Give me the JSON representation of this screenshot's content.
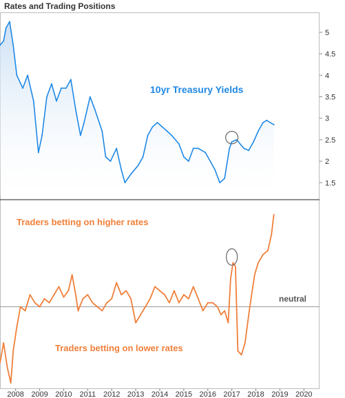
{
  "chart_data": [
    {
      "type": "area",
      "title": "Rates and Trading Positions",
      "annotation": "10yr Treasury Yields",
      "color": "#1e88e5",
      "ylim": [
        1.2,
        5.4
      ],
      "yticks": [
        1.5,
        2,
        2.5,
        3,
        3.5,
        4,
        4.5,
        5
      ],
      "ytick_labels": [
        "1.5",
        "2",
        "2.5",
        "3",
        "3.5",
        "4",
        "4.5",
        "5"
      ],
      "x": [
        2007.35,
        2007.5,
        2007.6,
        2007.75,
        2007.9,
        2008.05,
        2008.3,
        2008.5,
        2008.75,
        2008.95,
        2009.1,
        2009.3,
        2009.5,
        2009.7,
        2009.9,
        2010.1,
        2010.3,
        2010.5,
        2010.7,
        2010.85,
        2011.1,
        2011.3,
        2011.6,
        2011.75,
        2011.95,
        2012.2,
        2012.4,
        2012.55,
        2012.8,
        2013.1,
        2013.3,
        2013.5,
        2013.7,
        2013.9,
        2014.1,
        2014.3,
        2014.5,
        2014.8,
        2015.0,
        2015.2,
        2015.4,
        2015.6,
        2015.9,
        2016.1,
        2016.3,
        2016.5,
        2016.7,
        2016.9,
        2017.0,
        2017.2,
        2017.5,
        2017.7,
        2017.9,
        2018.1,
        2018.3,
        2018.45,
        2018.6,
        2018.75
      ],
      "values": [
        4.7,
        4.8,
        5.1,
        5.25,
        4.7,
        4.0,
        3.7,
        4.0,
        3.4,
        2.2,
        2.6,
        3.5,
        3.8,
        3.4,
        3.7,
        3.7,
        3.9,
        3.2,
        2.6,
        2.9,
        3.5,
        3.2,
        2.7,
        2.1,
        2.0,
        2.3,
        1.8,
        1.5,
        1.7,
        1.9,
        2.1,
        2.6,
        2.8,
        2.9,
        2.8,
        2.7,
        2.6,
        2.4,
        2.1,
        2.0,
        2.3,
        2.3,
        2.2,
        2.0,
        1.8,
        1.5,
        1.6,
        2.3,
        2.45,
        2.5,
        2.3,
        2.25,
        2.45,
        2.7,
        2.9,
        2.95,
        2.9,
        2.85
      ]
    },
    {
      "type": "line",
      "annotations": [
        "Traders betting on higher rates",
        "Traders betting on lower rates"
      ],
      "reference_line": {
        "value": 0,
        "label": "neutral"
      },
      "color": "#f07f3a",
      "ylim": [
        -1.0,
        1.3
      ],
      "x": [
        2007.35,
        2007.5,
        2007.65,
        2007.8,
        2007.9,
        2008.05,
        2008.2,
        2008.4,
        2008.6,
        2008.8,
        2009.0,
        2009.2,
        2009.4,
        2009.6,
        2009.8,
        2010.0,
        2010.2,
        2010.35,
        2010.5,
        2010.6,
        2010.8,
        2011.0,
        2011.2,
        2011.4,
        2011.6,
        2011.8,
        2012.0,
        2012.2,
        2012.4,
        2012.6,
        2012.8,
        2013.0,
        2013.2,
        2013.4,
        2013.6,
        2013.8,
        2014.0,
        2014.2,
        2014.4,
        2014.6,
        2014.8,
        2015.0,
        2015.2,
        2015.4,
        2015.6,
        2015.8,
        2016.0,
        2016.2,
        2016.4,
        2016.55,
        2016.7,
        2016.85,
        2016.95,
        2017.05,
        2017.15,
        2017.25,
        2017.4,
        2017.55,
        2017.75,
        2017.95,
        2018.1,
        2018.3,
        2018.5,
        2018.65,
        2018.75
      ],
      "values": [
        -0.7,
        -0.45,
        -0.75,
        -0.95,
        -0.55,
        -0.25,
        0.0,
        -0.05,
        0.15,
        0.05,
        0.0,
        0.1,
        0.05,
        0.15,
        0.25,
        0.12,
        0.2,
        0.4,
        0.15,
        -0.05,
        0.1,
        0.15,
        0.05,
        0.0,
        -0.05,
        0.05,
        0.1,
        0.3,
        0.15,
        0.2,
        0.1,
        -0.2,
        -0.1,
        0.0,
        0.1,
        0.25,
        0.2,
        0.15,
        0.05,
        0.2,
        0.05,
        0.15,
        0.1,
        0.25,
        0.1,
        -0.05,
        0.05,
        0.05,
        0.0,
        -0.1,
        -0.05,
        -0.2,
        0.35,
        0.55,
        0.5,
        -0.55,
        -0.6,
        -0.45,
        0.0,
        0.4,
        0.55,
        0.65,
        0.7,
        0.9,
        1.15
      ]
    }
  ],
  "x_axis": {
    "ticks": [
      2008,
      2009,
      2010,
      2011,
      2012,
      2013,
      2014,
      2015,
      2016,
      2017,
      2018,
      2019,
      2020
    ],
    "tick_labels": [
      "2008",
      "2009",
      "2010",
      "2011",
      "2012",
      "2013",
      "2014",
      "2015",
      "2016",
      "2017",
      "2018",
      "2019",
      "2020"
    ],
    "xlim": [
      2007.35,
      2020.65
    ]
  },
  "highlight_circles": {
    "x": 2017.0,
    "stroke": "#666666"
  },
  "colors": {
    "treasury": "#1e88e5",
    "positions": "#f07f3a",
    "neutral_line": "#999999",
    "divider": "#222222"
  }
}
